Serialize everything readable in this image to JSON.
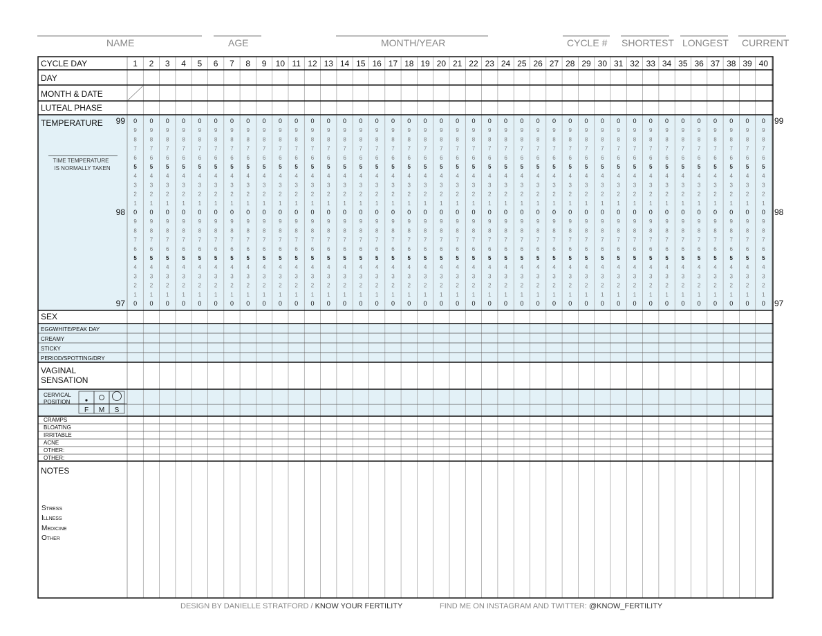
{
  "header": {
    "name_label": "NAME",
    "age_label": "AGE",
    "month_year_label": "MONTH/YEAR",
    "cycle_label": "CYCLE #",
    "shortest_label": "SHORTEST",
    "longest_label": "LONGEST",
    "current_label": "CURRENT"
  },
  "rows": {
    "cycle_day": "CYCLE DAY",
    "day": "DAY",
    "month_date": "MONTH & DATE",
    "luteal_phase": "LUTEAL PHASE",
    "temperature": "TEMPERATURE",
    "time_taken_1": "TIME TEMPERATURE",
    "time_taken_2": "IS NORMALLY TAKEN",
    "sex": "SEX",
    "eggwhite": "EGGWHITE/PEAK DAY",
    "creamy": "CREAMY",
    "sticky": "STICKY",
    "period": "PERIOD/SPOTTING/DRY",
    "vaginal_1": "VAGINAL",
    "vaginal_2": "SENSATION",
    "cervical_1": "CERVICAL",
    "cervical_2": "POSITION",
    "fms": [
      "F",
      "M",
      "S"
    ],
    "symptoms": [
      "CRAMPS",
      "BLOATING",
      "IRRITABLE",
      "ACNE",
      "OTHER:",
      "OTHER:"
    ],
    "notes": "NOTES",
    "notes_list": [
      "Stress",
      "Illness",
      "Medicine",
      "Other"
    ]
  },
  "temp_scale": {
    "major": [
      "99",
      "98",
      "97"
    ],
    "digits": [
      "0",
      "9",
      "8",
      "7",
      "6",
      "5",
      "4",
      "3",
      "2",
      "1",
      "0",
      "9",
      "8",
      "7",
      "6",
      "5",
      "4",
      "3",
      "2",
      "1",
      "0"
    ]
  },
  "days": [
    "1",
    "2",
    "3",
    "4",
    "5",
    "6",
    "7",
    "8",
    "9",
    "10",
    "11",
    "12",
    "13",
    "14",
    "15",
    "16",
    "17",
    "18",
    "19",
    "20",
    "21",
    "22",
    "23",
    "24",
    "25",
    "26",
    "27",
    "28",
    "29",
    "30",
    "31",
    "32",
    "33",
    "34",
    "35",
    "36",
    "37",
    "38",
    "39",
    "40"
  ],
  "footer": {
    "design_prefix": "DESIGN BY DANIELLE STRATFORD /",
    "design_brand": "KNOW YOUR FERTILITY",
    "social_prefix": "FIND ME ON INSTAGRAM AND TWITTER:",
    "social_handle": "@KNOW_FERTILITY"
  },
  "colors": {
    "band": "#e3f1f7",
    "grid": "#9a9a9a",
    "line": "#111111"
  }
}
